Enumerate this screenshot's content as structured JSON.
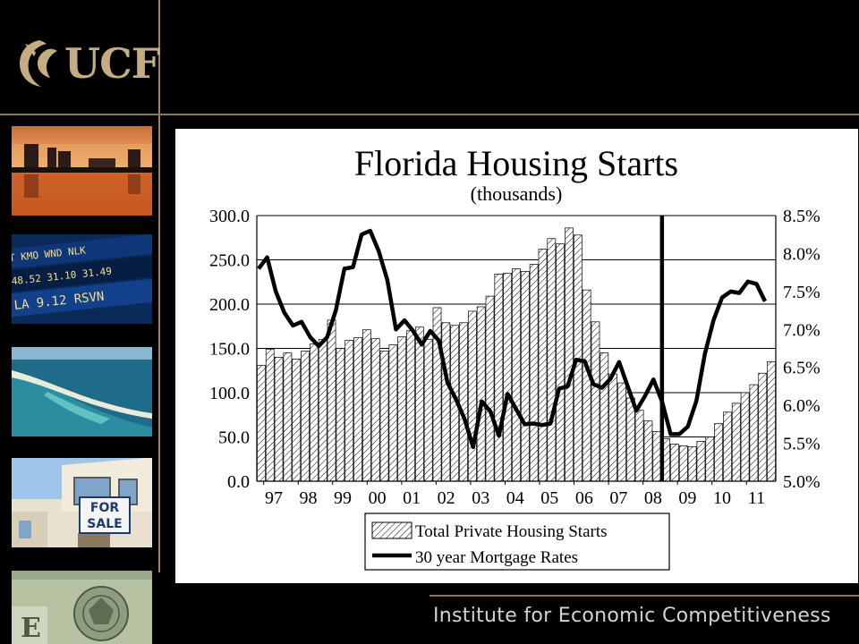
{
  "brand": {
    "logo_text": "UCF"
  },
  "footer": {
    "text": "Institute for Economic Competitiveness"
  },
  "sidebar": {
    "thumbnails": [
      {
        "name": "city-skyline-sunset"
      },
      {
        "name": "stock-ticker-board",
        "ticker_lines": [
          "T  KMO   WND   NLK",
          "48.52  31.10  31.49",
          "LA 9.12  RSVN"
        ]
      },
      {
        "name": "coastal-aerial"
      },
      {
        "name": "for-sale-house",
        "sign_text": [
          "FOR",
          "SALE"
        ]
      },
      {
        "name": "dollar-bill"
      }
    ]
  },
  "chart_data": {
    "type": "bar",
    "title": "Florida  Housing Starts",
    "subtitle": "(thousands)",
    "x_tick_labels": [
      "97",
      "98",
      "99",
      "00",
      "01",
      "02",
      "03",
      "04",
      "05",
      "06",
      "07",
      "08",
      "09",
      "10",
      "11"
    ],
    "y_left": {
      "range": [
        0,
        300
      ],
      "ticks": [
        "0.0",
        "50.0",
        "100.0",
        "150.0",
        "200.0",
        "250.0",
        "300.0"
      ]
    },
    "y_right": {
      "range": [
        5.0,
        8.5
      ],
      "ticks": [
        "5.0%",
        "5.5%",
        "6.0%",
        "6.5%",
        "7.0%",
        "7.5%",
        "8.0%",
        "8.5%"
      ]
    },
    "grid": true,
    "legend_position": "bottom",
    "series": [
      {
        "name": "Total Private Housing Starts",
        "type": "bar",
        "axis": "left",
        "values": [
          131,
          149,
          140,
          145,
          138,
          147,
          155,
          160,
          182,
          150,
          159,
          162,
          171,
          161,
          147,
          154,
          163,
          170,
          174,
          160,
          196,
          179,
          176,
          179,
          192,
          197,
          209,
          234,
          235,
          240,
          237,
          245,
          262,
          274,
          268,
          286,
          278,
          216,
          180,
          145,
          121,
          111,
          94,
          80,
          68,
          56,
          48,
          42,
          40,
          39,
          45,
          50,
          65,
          78,
          88,
          100,
          109,
          122,
          135
        ]
      },
      {
        "name": "30 year Mortgage Rates",
        "type": "line",
        "axis": "right",
        "values": [
          7.8,
          7.95,
          7.5,
          7.22,
          7.05,
          7.1,
          6.9,
          6.78,
          6.9,
          7.25,
          7.8,
          7.82,
          8.25,
          8.3,
          8.03,
          7.65,
          7.0,
          7.12,
          6.98,
          6.8,
          6.98,
          6.85,
          6.3,
          6.08,
          5.82,
          5.45,
          6.05,
          5.92,
          5.6,
          6.15,
          5.95,
          5.75,
          5.76,
          5.74,
          5.76,
          6.22,
          6.25,
          6.6,
          6.58,
          6.28,
          6.23,
          6.35,
          6.57,
          6.25,
          5.93,
          6.12,
          6.34,
          6.05,
          5.62,
          5.62,
          5.72,
          6.06,
          6.68,
          7.12,
          7.42,
          7.5,
          7.48,
          7.63,
          7.6,
          7.37
        ]
      }
    ],
    "annotation": {
      "type": "vertical-line",
      "x_year": 2008.55
    },
    "x_start_year": 1996.8,
    "x_end_year": 2011.85
  }
}
